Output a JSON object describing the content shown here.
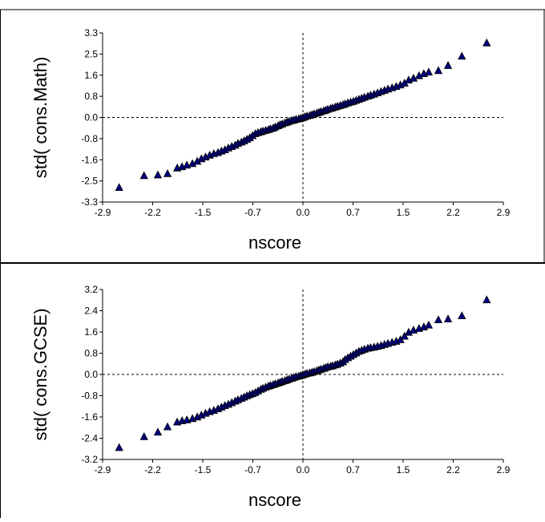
{
  "chart_data": [
    {
      "type": "scatter",
      "title": "",
      "xlabel": "nscore",
      "ylabel": "std( cons.Math)",
      "xlim": [
        -2.9,
        2.9
      ],
      "ylim": [
        -3.3,
        3.3
      ],
      "xticks": [
        "-2.9",
        "-2.2",
        "-1.5",
        "-0.7",
        "0.0",
        "0.7",
        "1.5",
        "2.2",
        "2.9"
      ],
      "yticks": [
        "3.3",
        "2.5",
        "1.6",
        "0.8",
        "0.0",
        "-0.8",
        "-1.6",
        "-2.5",
        "-3.3"
      ],
      "reference_lines": {
        "x": 0,
        "y": 0,
        "style": "dashed"
      },
      "marker": "triangle",
      "marker_color": "#000080",
      "points": [
        [
          -2.66,
          -2.74
        ],
        [
          -2.3,
          -2.28
        ],
        [
          -2.1,
          -2.25
        ],
        [
          -1.96,
          -2.2
        ],
        [
          -1.82,
          -1.98
        ],
        [
          -1.75,
          -1.93
        ],
        [
          -1.68,
          -1.87
        ],
        [
          -1.6,
          -1.81
        ],
        [
          -1.53,
          -1.72
        ],
        [
          -1.47,
          -1.62
        ],
        [
          -1.41,
          -1.55
        ],
        [
          -1.35,
          -1.48
        ],
        [
          -1.29,
          -1.42
        ],
        [
          -1.23,
          -1.38
        ],
        [
          -1.18,
          -1.32
        ],
        [
          -1.13,
          -1.27
        ],
        [
          -1.08,
          -1.2
        ],
        [
          -1.03,
          -1.14
        ],
        [
          -0.98,
          -1.09
        ],
        [
          -0.94,
          -1.02
        ],
        [
          -0.89,
          -0.97
        ],
        [
          -0.85,
          -0.92
        ],
        [
          -0.81,
          -0.86
        ],
        [
          -0.77,
          -0.8
        ],
        [
          -0.73,
          -0.72
        ],
        [
          -0.69,
          -0.64
        ],
        [
          -0.65,
          -0.6
        ],
        [
          -0.61,
          -0.57
        ],
        [
          -0.58,
          -0.54
        ],
        [
          -0.54,
          -0.51
        ],
        [
          -0.5,
          -0.48
        ],
        [
          -0.47,
          -0.45
        ],
        [
          -0.43,
          -0.42
        ],
        [
          -0.4,
          -0.38
        ],
        [
          -0.36,
          -0.33
        ],
        [
          -0.33,
          -0.29
        ],
        [
          -0.3,
          -0.26
        ],
        [
          -0.26,
          -0.22
        ],
        [
          -0.23,
          -0.19
        ],
        [
          -0.2,
          -0.16
        ],
        [
          -0.16,
          -0.13
        ],
        [
          -0.13,
          -0.11
        ],
        [
          -0.1,
          -0.08
        ],
        [
          -0.06,
          -0.06
        ],
        [
          -0.03,
          -0.04
        ],
        [
          0.0,
          -0.01
        ],
        [
          0.03,
          0.02
        ],
        [
          0.06,
          0.05
        ],
        [
          0.1,
          0.07
        ],
        [
          0.13,
          0.1
        ],
        [
          0.16,
          0.13
        ],
        [
          0.2,
          0.16
        ],
        [
          0.23,
          0.19
        ],
        [
          0.26,
          0.22
        ],
        [
          0.3,
          0.25
        ],
        [
          0.33,
          0.28
        ],
        [
          0.36,
          0.31
        ],
        [
          0.4,
          0.34
        ],
        [
          0.43,
          0.37
        ],
        [
          0.47,
          0.4
        ],
        [
          0.5,
          0.43
        ],
        [
          0.54,
          0.46
        ],
        [
          0.58,
          0.49
        ],
        [
          0.61,
          0.52
        ],
        [
          0.65,
          0.56
        ],
        [
          0.69,
          0.59
        ],
        [
          0.73,
          0.62
        ],
        [
          0.77,
          0.66
        ],
        [
          0.81,
          0.7
        ],
        [
          0.85,
          0.74
        ],
        [
          0.89,
          0.78
        ],
        [
          0.94,
          0.82
        ],
        [
          0.98,
          0.86
        ],
        [
          1.03,
          0.9
        ],
        [
          1.08,
          0.95
        ],
        [
          1.13,
          1.0
        ],
        [
          1.18,
          1.05
        ],
        [
          1.23,
          1.1
        ],
        [
          1.29,
          1.15
        ],
        [
          1.35,
          1.2
        ],
        [
          1.41,
          1.26
        ],
        [
          1.47,
          1.33
        ],
        [
          1.53,
          1.45
        ],
        [
          1.6,
          1.52
        ],
        [
          1.68,
          1.62
        ],
        [
          1.75,
          1.7
        ],
        [
          1.82,
          1.76
        ],
        [
          1.96,
          1.82
        ],
        [
          2.1,
          2.02
        ],
        [
          2.3,
          2.38
        ],
        [
          2.66,
          2.9
        ]
      ]
    },
    {
      "type": "scatter",
      "title": "",
      "xlabel": "nscore",
      "ylabel": "std( cons.GCSE)",
      "xlim": [
        -2.9,
        2.9
      ],
      "ylim": [
        -3.2,
        3.2
      ],
      "xticks": [
        "-2.9",
        "-2.2",
        "-1.5",
        "-0.7",
        "0.0",
        "0.7",
        "1.5",
        "2.2",
        "2.9"
      ],
      "yticks": [
        "3.2",
        "2.4",
        "1.6",
        "0.8",
        "0.0",
        "-0.8",
        "-1.6",
        "-2.4",
        "-3.2"
      ],
      "reference_lines": {
        "x": 0,
        "y": 0,
        "style": "dashed"
      },
      "marker": "triangle",
      "marker_color": "#000080",
      "points": [
        [
          -2.66,
          -2.76
        ],
        [
          -2.3,
          -2.35
        ],
        [
          -2.1,
          -2.18
        ],
        [
          -1.96,
          -1.98
        ],
        [
          -1.82,
          -1.8
        ],
        [
          -1.75,
          -1.75
        ],
        [
          -1.68,
          -1.72
        ],
        [
          -1.6,
          -1.67
        ],
        [
          -1.53,
          -1.61
        ],
        [
          -1.47,
          -1.54
        ],
        [
          -1.41,
          -1.47
        ],
        [
          -1.35,
          -1.41
        ],
        [
          -1.29,
          -1.36
        ],
        [
          -1.23,
          -1.3
        ],
        [
          -1.18,
          -1.24
        ],
        [
          -1.13,
          -1.18
        ],
        [
          -1.08,
          -1.13
        ],
        [
          -1.03,
          -1.07
        ],
        [
          -0.98,
          -1.01
        ],
        [
          -0.94,
          -0.96
        ],
        [
          -0.89,
          -0.91
        ],
        [
          -0.85,
          -0.86
        ],
        [
          -0.81,
          -0.81
        ],
        [
          -0.77,
          -0.77
        ],
        [
          -0.73,
          -0.73
        ],
        [
          -0.69,
          -0.69
        ],
        [
          -0.65,
          -0.63
        ],
        [
          -0.61,
          -0.57
        ],
        [
          -0.58,
          -0.53
        ],
        [
          -0.54,
          -0.49
        ],
        [
          -0.5,
          -0.45
        ],
        [
          -0.47,
          -0.42
        ],
        [
          -0.43,
          -0.39
        ],
        [
          -0.4,
          -0.36
        ],
        [
          -0.36,
          -0.33
        ],
        [
          -0.33,
          -0.3
        ],
        [
          -0.3,
          -0.27
        ],
        [
          -0.26,
          -0.24
        ],
        [
          -0.23,
          -0.21
        ],
        [
          -0.2,
          -0.18
        ],
        [
          -0.16,
          -0.15
        ],
        [
          -0.13,
          -0.12
        ],
        [
          -0.1,
          -0.09
        ],
        [
          -0.06,
          -0.07
        ],
        [
          -0.03,
          -0.05
        ],
        [
          0.0,
          -0.02
        ],
        [
          0.03,
          0.01
        ],
        [
          0.06,
          0.03
        ],
        [
          0.1,
          0.05
        ],
        [
          0.13,
          0.07
        ],
        [
          0.16,
          0.1
        ],
        [
          0.2,
          0.13
        ],
        [
          0.23,
          0.16
        ],
        [
          0.26,
          0.19
        ],
        [
          0.3,
          0.22
        ],
        [
          0.33,
          0.25
        ],
        [
          0.36,
          0.28
        ],
        [
          0.4,
          0.3
        ],
        [
          0.43,
          0.32
        ],
        [
          0.47,
          0.35
        ],
        [
          0.5,
          0.38
        ],
        [
          0.54,
          0.42
        ],
        [
          0.58,
          0.47
        ],
        [
          0.61,
          0.55
        ],
        [
          0.65,
          0.62
        ],
        [
          0.69,
          0.68
        ],
        [
          0.73,
          0.74
        ],
        [
          0.77,
          0.8
        ],
        [
          0.81,
          0.86
        ],
        [
          0.85,
          0.9
        ],
        [
          0.89,
          0.94
        ],
        [
          0.94,
          0.98
        ],
        [
          0.98,
          1.0
        ],
        [
          1.03,
          1.02
        ],
        [
          1.08,
          1.05
        ],
        [
          1.13,
          1.08
        ],
        [
          1.18,
          1.12
        ],
        [
          1.23,
          1.16
        ],
        [
          1.29,
          1.2
        ],
        [
          1.35,
          1.24
        ],
        [
          1.41,
          1.3
        ],
        [
          1.47,
          1.43
        ],
        [
          1.53,
          1.58
        ],
        [
          1.6,
          1.66
        ],
        [
          1.68,
          1.72
        ],
        [
          1.75,
          1.78
        ],
        [
          1.82,
          1.85
        ],
        [
          1.96,
          2.05
        ],
        [
          2.1,
          2.08
        ],
        [
          2.3,
          2.2
        ],
        [
          2.66,
          2.8
        ]
      ]
    }
  ]
}
